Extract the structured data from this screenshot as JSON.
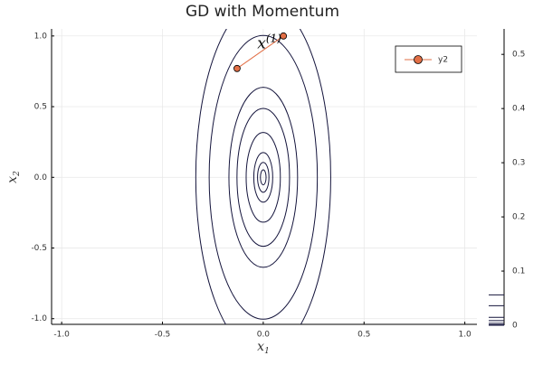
{
  "chart_data": {
    "type": "contour",
    "title": "GD with Momentum",
    "xlabel": {
      "text": "x",
      "sub": "1"
    },
    "ylabel": {
      "text": "x",
      "sub": "2"
    },
    "xlim": [
      -1.05,
      1.06
    ],
    "ylim": [
      -1.04,
      1.05
    ],
    "xticks": [
      {
        "value": -1,
        "label": "-1.0"
      },
      {
        "value": -0.5,
        "label": "-0.5"
      },
      {
        "value": 0,
        "label": "0.0"
      },
      {
        "value": 0.5,
        "label": "0.5"
      },
      {
        "value": 1,
        "label": "1.0"
      }
    ],
    "yticks": [
      {
        "value": -1,
        "label": "-1.0"
      },
      {
        "value": -0.5,
        "label": "-0.5"
      },
      {
        "value": 0,
        "label": "0.0"
      },
      {
        "value": 0.5,
        "label": "0.5"
      },
      {
        "value": 1,
        "label": "1.0"
      }
    ],
    "grid": true,
    "contour_levels": [
      0.056,
      0.036,
      0.0145,
      0.0085,
      0.0036,
      0.0011,
      0.0004,
      0.0001
    ],
    "contour_color": "#14143c",
    "colorbar_lim": [
      0,
      0.547
    ],
    "colorbar_ticks": [
      0,
      0.1,
      0.2,
      0.3,
      0.4,
      0.5
    ],
    "series": [
      {
        "name": "y2",
        "color": "#e26f46",
        "x": [
          -0.13,
          0.1
        ],
        "values": [
          0.77,
          1.0
        ]
      }
    ],
    "annotation": {
      "text": "x",
      "sup": "(1)",
      "x": 0.03,
      "y": 0.97
    },
    "legend": "top-right"
  }
}
